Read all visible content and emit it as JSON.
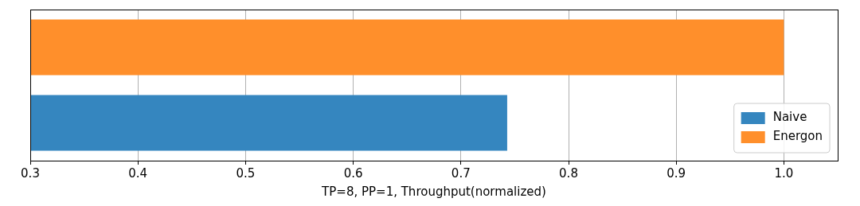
{
  "chart_data": {
    "type": "bar",
    "orientation": "horizontal",
    "x_label": "TP=8, PP=1, Throughput(normalized)",
    "categories": [
      null,
      null
    ],
    "series": [
      {
        "name": "Naive",
        "color": "#3586bf",
        "values": [
          null,
          0.743
        ]
      },
      {
        "name": "Energon",
        "color": "#ff8f2b",
        "values": [
          1.0,
          null
        ]
      }
    ],
    "xlim": [
      0.3,
      1.05
    ],
    "xticks": [
      0.3,
      0.4,
      0.5,
      0.6,
      0.7,
      0.8,
      0.9,
      {
        "value": 1,
        "label": "1.0"
      }
    ],
    "grid": true,
    "legend": "lower right",
    "tick_labels": "x"
  }
}
